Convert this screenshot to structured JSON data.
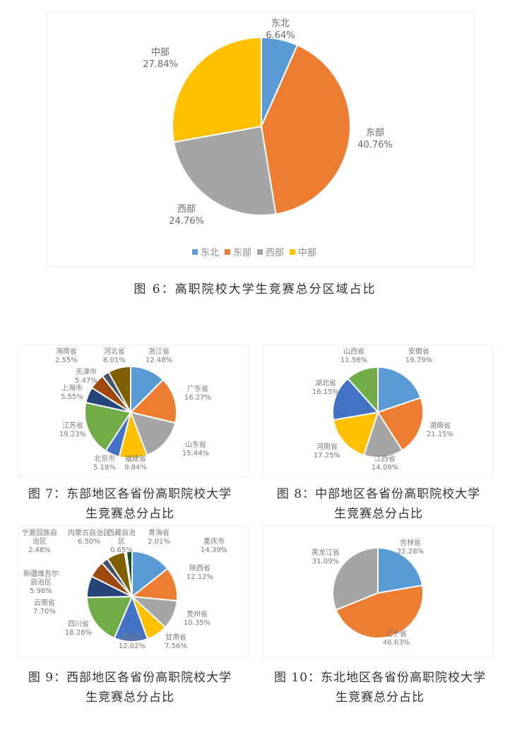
{
  "figures": {
    "fig6": {
      "caption": "图 6：高职院校大学生竞赛总分区域占比",
      "legend": [
        {
          "label": "东北",
          "color": "#5B9BD5"
        },
        {
          "label": "东部",
          "color": "#ED7D31"
        },
        {
          "label": "西部",
          "color": "#A5A5A5"
        },
        {
          "label": "中部",
          "color": "#FFC000"
        }
      ],
      "slices": [
        {
          "label": "东北",
          "pct": "6.64%"
        },
        {
          "label": "东部",
          "pct": "40.76%"
        },
        {
          "label": "西部",
          "pct": "24.76%"
        },
        {
          "label": "中部",
          "pct": "27.84%"
        }
      ]
    },
    "fig7": {
      "caption_line1": "图 7：东部地区各省份高职院校大学",
      "caption_line2": "生竞赛总分占比",
      "slices": [
        {
          "label": "浙江省",
          "pct": "12.48%"
        },
        {
          "label": "广东省",
          "pct": "16.27%"
        },
        {
          "label": "山东省",
          "pct": "15.44%"
        },
        {
          "label": "福建省",
          "pct": "9.84%"
        },
        {
          "label": "北京市",
          "pct": "5.18%"
        },
        {
          "label": "江苏省",
          "pct": "19.23%"
        },
        {
          "label": "上海市",
          "pct": "5.55%"
        },
        {
          "label": "天津市",
          "pct": "5.47%"
        },
        {
          "label": "海南省",
          "pct": "2.55%"
        },
        {
          "label": "河北省",
          "pct": "8.01%"
        }
      ]
    },
    "fig8": {
      "caption_line1": "图 8：中部地区各省份高职院校大学",
      "caption_line2": "生竞赛总分占比",
      "slices": [
        {
          "label": "安徽省",
          "pct": "19.79%"
        },
        {
          "label": "湖南省",
          "pct": "21.15%"
        },
        {
          "label": "江西省",
          "pct": "14.09%"
        },
        {
          "label": "河南省",
          "pct": "17.25%"
        },
        {
          "label": "湖北省",
          "pct": "16.15%"
        },
        {
          "label": "山西省",
          "pct": "11.58%"
        }
      ]
    },
    "fig9": {
      "caption_line1": "图 9：西部地区各省份高职院校大学",
      "caption_line2": "生竞赛总分占比",
      "slices": [
        {
          "label": "重庆市",
          "pct": "14.39%"
        },
        {
          "label": "陕西省",
          "pct": "12.12%"
        },
        {
          "label": "贵州省",
          "pct": "10.35%"
        },
        {
          "label": "甘肃省",
          "pct": "7.56%"
        },
        {
          "label": "自治区",
          "pct": "12.02%"
        },
        {
          "label": "四川省",
          "pct": "18.26%"
        },
        {
          "label": "云南省",
          "pct": "7.70%"
        },
        {
          "label": "新疆维吾尔自治区",
          "pct": "5.96%"
        },
        {
          "label": "宁夏回族自治区",
          "pct": "2.48%"
        },
        {
          "label": "内蒙古自治区",
          "pct": "6.50%"
        },
        {
          "label": "西藏自治区",
          "pct": "0.65%"
        },
        {
          "label": "青海省",
          "pct": "2.01%"
        }
      ]
    },
    "fig10": {
      "caption_line1": "图 10：东北地区各省份高职院校大学",
      "caption_line2": "生竞赛总分占比",
      "slices": [
        {
          "label": "吉林省",
          "pct": "22.28%"
        },
        {
          "label": "辽宁省",
          "pct": "46.63%"
        },
        {
          "label": "黑龙江省",
          "pct": "31.09%"
        }
      ]
    }
  },
  "chart_data": [
    {
      "type": "pie",
      "title": "图 6：高职院校大学生竞赛总分区域占比",
      "categories": [
        "东北",
        "东部",
        "西部",
        "中部"
      ],
      "values": [
        6.64,
        40.76,
        24.76,
        27.84
      ],
      "colors": [
        "#5B9BD5",
        "#ED7D31",
        "#A5A5A5",
        "#FFC000"
      ],
      "legend_position": "bottom",
      "start_angle": "12 o'clock, clockwise"
    },
    {
      "type": "pie",
      "title": "图 7：东部地区各省份高职院校大学生竞赛总分占比",
      "categories": [
        "浙江省",
        "广东省",
        "山东省",
        "福建省",
        "北京市",
        "江苏省",
        "上海市",
        "天津市",
        "海南省",
        "河北省"
      ],
      "values": [
        12.48,
        16.27,
        15.44,
        9.84,
        5.18,
        19.23,
        5.55,
        5.47,
        2.55,
        8.01
      ],
      "colors": [
        "#5B9BD5",
        "#ED7D31",
        "#A5A5A5",
        "#FFC000",
        "#4472C4",
        "#70AD47",
        "#264478",
        "#9E480E",
        "#43536A",
        "#7F6000"
      ]
    },
    {
      "type": "pie",
      "title": "图 8：中部地区各省份高职院校大学生竞赛总分占比",
      "categories": [
        "安徽省",
        "湖南省",
        "江西省",
        "河南省",
        "湖北省",
        "山西省"
      ],
      "values": [
        19.79,
        21.15,
        14.09,
        17.25,
        16.15,
        11.58
      ],
      "colors": [
        "#5B9BD5",
        "#ED7D31",
        "#A5A5A5",
        "#FFC000",
        "#4472C4",
        "#70AD47"
      ]
    },
    {
      "type": "pie",
      "title": "图 9：西部地区各省份高职院校大学生竞赛总分占比",
      "categories": [
        "重庆市",
        "陕西省",
        "贵州省",
        "甘肃省",
        "自治区",
        "四川省",
        "云南省",
        "新疆维吾尔自治区",
        "宁夏回族自治区",
        "内蒙古自治区",
        "西藏自治区",
        "青海省"
      ],
      "values": [
        14.39,
        12.12,
        10.35,
        7.56,
        12.02,
        18.26,
        7.7,
        5.96,
        2.48,
        6.5,
        0.65,
        2.01
      ],
      "colors": [
        "#5B9BD5",
        "#ED7D31",
        "#A5A5A5",
        "#FFC000",
        "#4472C4",
        "#70AD47",
        "#264478",
        "#9E480E",
        "#43536A",
        "#7F6000",
        "#F4F4F4",
        "#1E4E28"
      ]
    },
    {
      "type": "pie",
      "title": "图 10：东北地区各省份高职院校大学生竞赛总分占比",
      "categories": [
        "吉林省",
        "辽宁省",
        "黑龙江省"
      ],
      "values": [
        22.28,
        46.63,
        31.09
      ],
      "colors": [
        "#5B9BD5",
        "#ED7D31",
        "#A5A5A5"
      ]
    }
  ]
}
